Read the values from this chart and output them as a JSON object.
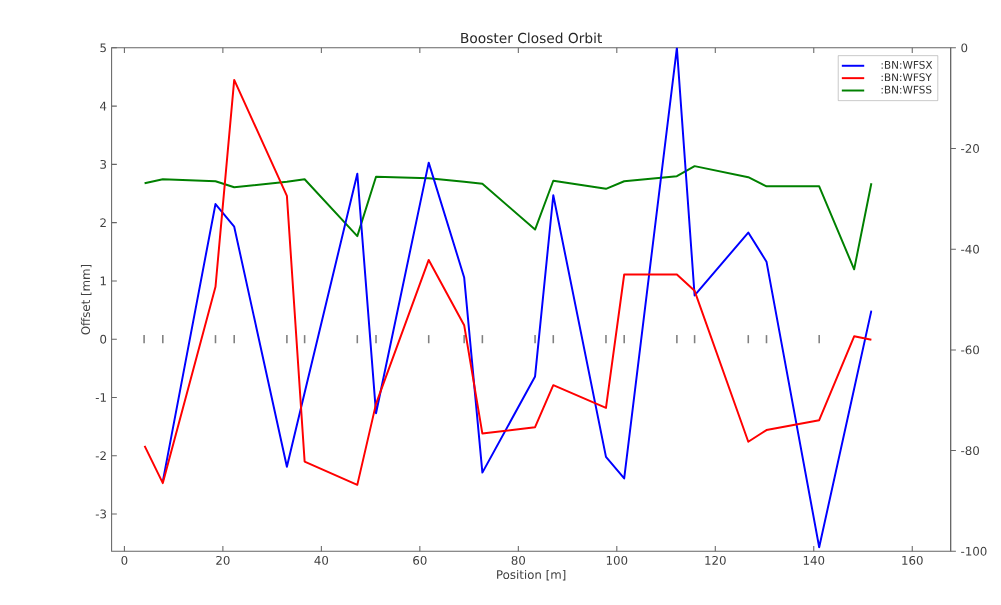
{
  "chart_data": {
    "type": "line",
    "title": "Booster Closed Orbit",
    "xlabel": "Position [m]",
    "ylabel": "Offset [mm]",
    "xlim": [
      -2.6,
      167.8
    ],
    "ylim": [
      -3.64,
      5
    ],
    "y2lim": [
      -100,
      0
    ],
    "xticks": [
      0,
      20,
      40,
      60,
      80,
      100,
      120,
      140,
      160
    ],
    "yticks": [
      -3,
      -2,
      -1,
      0,
      1,
      2,
      3,
      4,
      5
    ],
    "y2ticks": [
      -100,
      -80,
      -60,
      -40,
      -20,
      0
    ],
    "legend": "top right",
    "grid": false,
    "line_style": "solid",
    "marker": "none",
    "x": [
      4.1,
      7.8,
      18.5,
      22.3,
      33.0,
      36.6,
      47.3,
      51.1,
      61.8,
      69.0,
      72.7,
      83.4,
      87.1,
      97.8,
      101.5,
      112.2,
      115.8,
      126.7,
      130.4,
      141.1,
      148.2,
      151.7
    ],
    "series": [
      {
        "name": ":BN:WFSX",
        "color": "#0000ff",
        "values": [
          null,
          -2.44,
          2.32,
          1.93,
          -2.19,
          -0.92,
          2.84,
          -1.27,
          3.03,
          1.06,
          -2.29,
          -0.64,
          2.47,
          -2.02,
          -2.39,
          5.0,
          0.75,
          1.83,
          1.33,
          -3.57,
          -0.85,
          0.49
        ]
      },
      {
        "name": ":BN:WFSY",
        "color": "#ff0000",
        "values": [
          -1.83,
          -2.47,
          0.9,
          4.45,
          2.46,
          -2.1,
          -2.5,
          -1.11,
          1.36,
          0.24,
          -1.62,
          -1.51,
          -0.79,
          -1.18,
          1.11,
          1.11,
          0.83,
          -1.76,
          -1.56,
          -1.39,
          0.05,
          -0.01
        ]
      },
      {
        "name": ":BN:WFSS",
        "color": "#008000",
        "axis": "y2",
        "values": [
          -26.9,
          -26.1,
          -26.5,
          -27.7,
          -26.6,
          -26.1,
          -37.4,
          -25.6,
          -25.9,
          -26.6,
          -27.0,
          -36.1,
          -26.4,
          -28.0,
          -26.5,
          -25.5,
          -23.5,
          -25.7,
          -27.5,
          -27.5,
          -44.0,
          -26.9
        ]
      },
      {
        "type": "bar",
        "color": "#808080",
        "x": [
          4.0,
          7.8,
          18.5,
          22.3,
          33.0,
          36.6,
          47.3,
          51.1,
          61.8,
          69.0,
          72.7,
          83.4,
          87.1,
          97.8,
          101.5,
          112.2,
          115.8,
          126.7,
          130.4,
          141.1
        ],
        "base": [
          -0.07,
          -0.07,
          -0.07,
          -0.07,
          -0.07,
          -0.07,
          -0.07,
          -0.07,
          -0.07,
          -0.07,
          -0.07,
          -0.07,
          -0.07,
          -0.07,
          -0.07,
          -0.07,
          -0.07,
          -0.07,
          -0.07,
          -0.07
        ],
        "values": [
          0.14,
          0.14,
          0.14,
          0.14,
          0.14,
          0.14,
          0.14,
          0.14,
          0.14,
          0.14,
          0.14,
          0.14,
          0.14,
          0.14,
          0.14,
          0.14,
          0.14,
          0.14,
          0.14,
          0.14
        ]
      }
    ]
  }
}
